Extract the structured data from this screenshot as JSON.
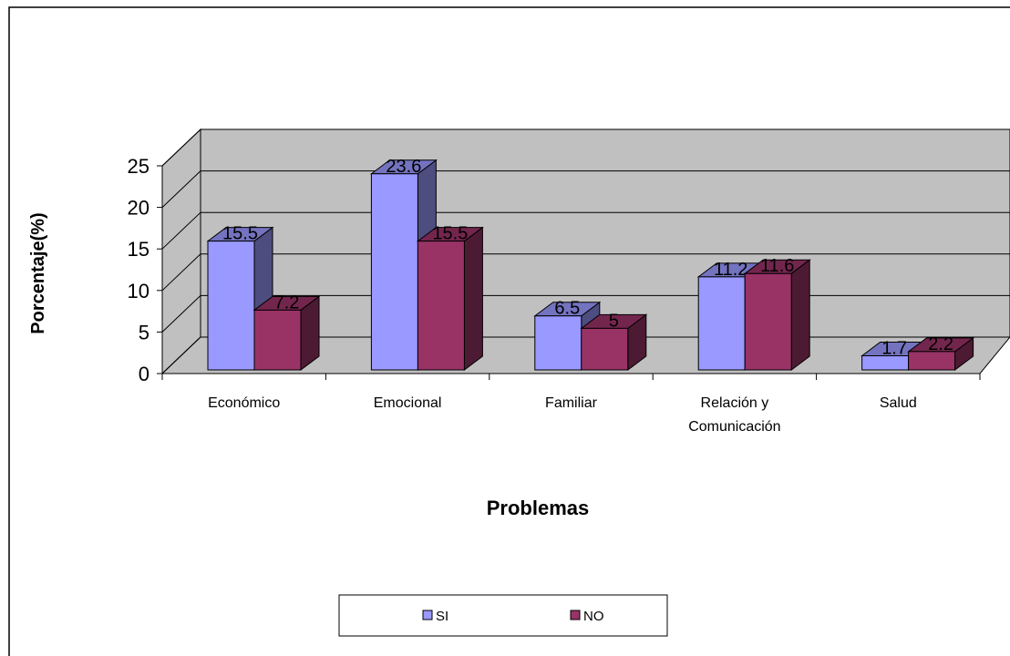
{
  "chart_data": {
    "type": "bar3d",
    "categories": [
      "Económico",
      "Emocional",
      "Familiar",
      "Relación y Comunicación",
      "Salud"
    ],
    "series": [
      {
        "name": "SI",
        "color": "#9999ff",
        "values": [
          15.5,
          23.6,
          6.5,
          11.2,
          1.7
        ]
      },
      {
        "name": "NO",
        "color": "#993366",
        "values": [
          7.2,
          15.5,
          5,
          11.6,
          2.2
        ]
      }
    ],
    "ylabel": "Porcentaje(%)",
    "xlabel": "Problemas",
    "ylim": [
      0,
      25
    ],
    "yticks": [
      0,
      5,
      10,
      15,
      20,
      25
    ],
    "grid": true,
    "legend": "bottom"
  }
}
